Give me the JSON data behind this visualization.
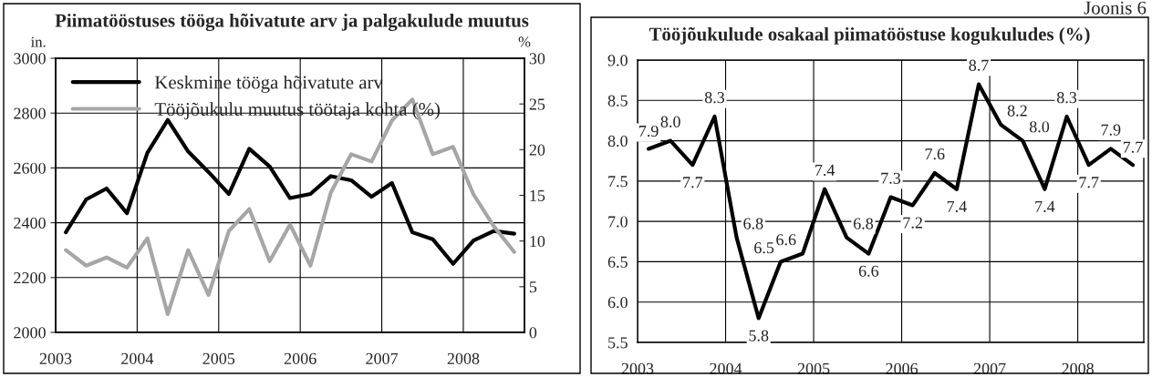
{
  "chart_data": [
    {
      "type": "line",
      "title": "Piimatööstuses tööga hõivatute arv ja palgakulude muutus",
      "ylabel": "in.",
      "y2label": "%",
      "x": [
        2003.125,
        2003.375,
        2003.625,
        2003.875,
        2004.125,
        2004.375,
        2004.625,
        2004.875,
        2005.125,
        2005.375,
        2005.625,
        2005.875,
        2006.125,
        2006.375,
        2006.625,
        2006.875,
        2007.125,
        2007.375,
        2007.625,
        2007.875,
        2008.125,
        2008.375,
        2008.625
      ],
      "series": [
        {
          "name": "Keskmine tööga hõivatute arv",
          "color": "#000000",
          "values": [
            2365,
            2485,
            2525,
            2435,
            2655,
            2775,
            2660,
            2585,
            2505,
            2670,
            2605,
            2490,
            2505,
            2570,
            2555,
            2495,
            2545,
            2365,
            2340,
            2250,
            2335,
            2370,
            2360
          ]
        },
        {
          "name": "Tööjõukulu muutus töötaja kohta (%)",
          "color": "#a6a6a6",
          "axis": "y2",
          "values": [
            9.0,
            7.3,
            8.2,
            7.1,
            10.3,
            2.0,
            9.0,
            4.1,
            11.1,
            13.5,
            7.8,
            11.8,
            7.3,
            15.3,
            19.5,
            18.7,
            23.2,
            25.5,
            19.5,
            20.3,
            15.1,
            11.6,
            8.8
          ]
        }
      ],
      "xlim": [
        2003,
        2008.75
      ],
      "xticks": [
        2003,
        2004,
        2005,
        2006,
        2007,
        2008
      ],
      "ylim": [
        2000,
        3000
      ],
      "yticks": [
        2000,
        2200,
        2400,
        2600,
        2800,
        3000
      ],
      "y2lim": [
        0,
        30
      ],
      "y2ticks": [
        0,
        5,
        10,
        15,
        20,
        25,
        30
      ],
      "grid": true,
      "legend": "top left",
      "marker": "none",
      "line_style": "solid"
    },
    {
      "type": "line",
      "title": "Tööjõukulude osakaal piimatööstuse kogukuludes (%)",
      "annotations": [
        "Joonis 6"
      ],
      "x": [
        2003.125,
        2003.375,
        2003.625,
        2003.875,
        2004.125,
        2004.375,
        2004.625,
        2004.875,
        2005.125,
        2005.375,
        2005.625,
        2005.875,
        2006.125,
        2006.375,
        2006.625,
        2006.875,
        2007.125,
        2007.375,
        2007.625,
        2007.875,
        2008.125,
        2008.375,
        2008.625
      ],
      "series": [
        {
          "color": "#000000",
          "values": [
            7.9,
            8.0,
            7.7,
            8.3,
            6.8,
            5.8,
            6.5,
            6.6,
            7.4,
            6.8,
            6.6,
            7.3,
            7.2,
            7.6,
            7.4,
            8.7,
            8.2,
            8.0,
            7.4,
            8.3,
            7.7,
            7.9,
            7.7
          ],
          "value_labels": [
            "7.9",
            "8.0",
            "7.7",
            "8.3",
            "6.8",
            "5.8",
            "6.5",
            "6.6",
            "7.4",
            "6.8",
            "6.6",
            "7.3",
            "7.2",
            "7.6",
            "7.4",
            "8.7",
            "8.2",
            "8.0",
            "7.4",
            "8.3",
            "7.7",
            "7.9",
            "7.7"
          ]
        }
      ],
      "xlim": [
        2003,
        2008.75
      ],
      "xticks": [
        2003,
        2004,
        2005,
        2006,
        2007,
        2008
      ],
      "ylim": [
        5.5,
        9.0
      ],
      "yticks": [
        5.5,
        {
          "value": 6,
          "label": "6.0"
        },
        6.5,
        {
          "value": 7,
          "label": "7.0"
        },
        7.5,
        {
          "value": 8,
          "label": "8.0"
        },
        8.5,
        {
          "value": 9,
          "label": "9.0"
        }
      ],
      "grid": true,
      "marker": "none",
      "line_style": "solid"
    }
  ]
}
